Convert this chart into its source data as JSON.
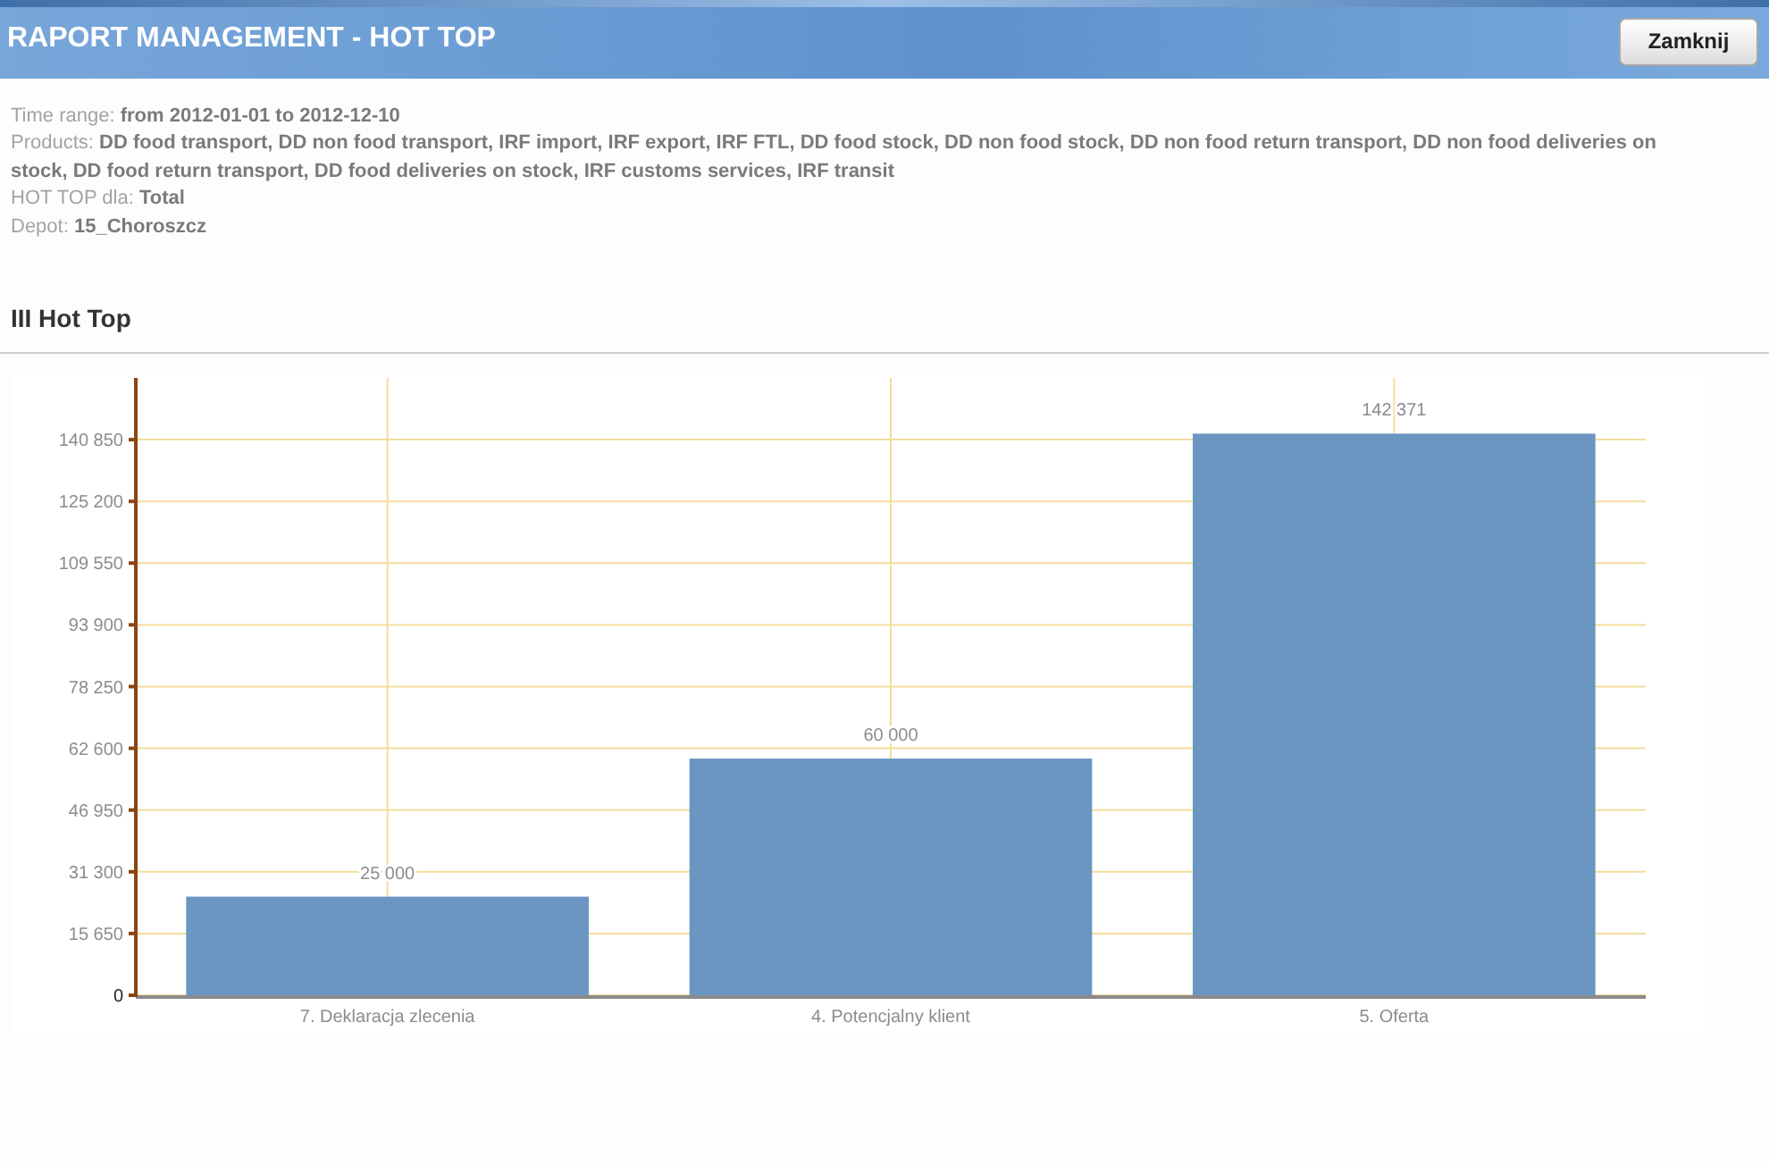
{
  "chart_data": {
    "type": "bar",
    "title": "RAPORT MANAGEMENT - HOT TOP",
    "subtitle": "III Hot Top",
    "annotations": [
      "Zamknij",
      "Time range: from 2012-01-01 to 2012-12-10",
      "Products: DD food transport, DD non food transport, IRF import, IRF export, IRF FTL, DD food stock, DD non food stock, DD non food return transport, DD non food deliveries on stock, DD food return transport, DD food deliveries on stock, IRF customs services, IRF transit",
      "HOT TOP dla: Total",
      "Depot: 15_Choroszcz"
    ],
    "categories": [
      "7. Deklaracja zlecenia",
      "4. Potencjalny klient",
      "5. Oferta"
    ],
    "values": [
      25000,
      60000,
      142371
    ],
    "color": "#6b96c1",
    "ylim": [
      0,
      156500
    ],
    "yticks": [
      0,
      {
        "value": 15650,
        "label": "15 650"
      },
      {
        "value": 31300,
        "label": "31 300"
      },
      {
        "value": 46950,
        "label": "46 950"
      },
      {
        "value": 62600,
        "label": "62 600"
      },
      {
        "value": 78250,
        "label": "78 250"
      },
      {
        "value": 93900,
        "label": "93 900"
      },
      {
        "value": 109550,
        "label": "109 550"
      },
      {
        "value": 125200,
        "label": "125 200"
      },
      {
        "value": 140850,
        "label": "140 850"
      }
    ],
    "grid": true,
    "value_labels": [
      "25 000",
      "60 000",
      "142 371"
    ]
  }
}
